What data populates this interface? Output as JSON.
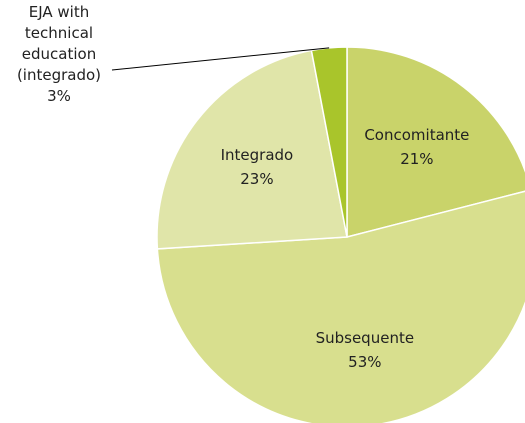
{
  "chart_data": {
    "type": "pie",
    "categories": [
      "Concomitante",
      "Subsequente",
      "Integrado",
      "EJA with technical education (integrado)"
    ],
    "values": [
      21,
      53,
      23,
      3
    ],
    "value_labels": [
      "21%",
      "53%",
      "23%",
      "3%"
    ],
    "colors": [
      "#c9d36a",
      "#d8df8e",
      "#e0e5a9",
      "#a9c52b"
    ]
  }
}
